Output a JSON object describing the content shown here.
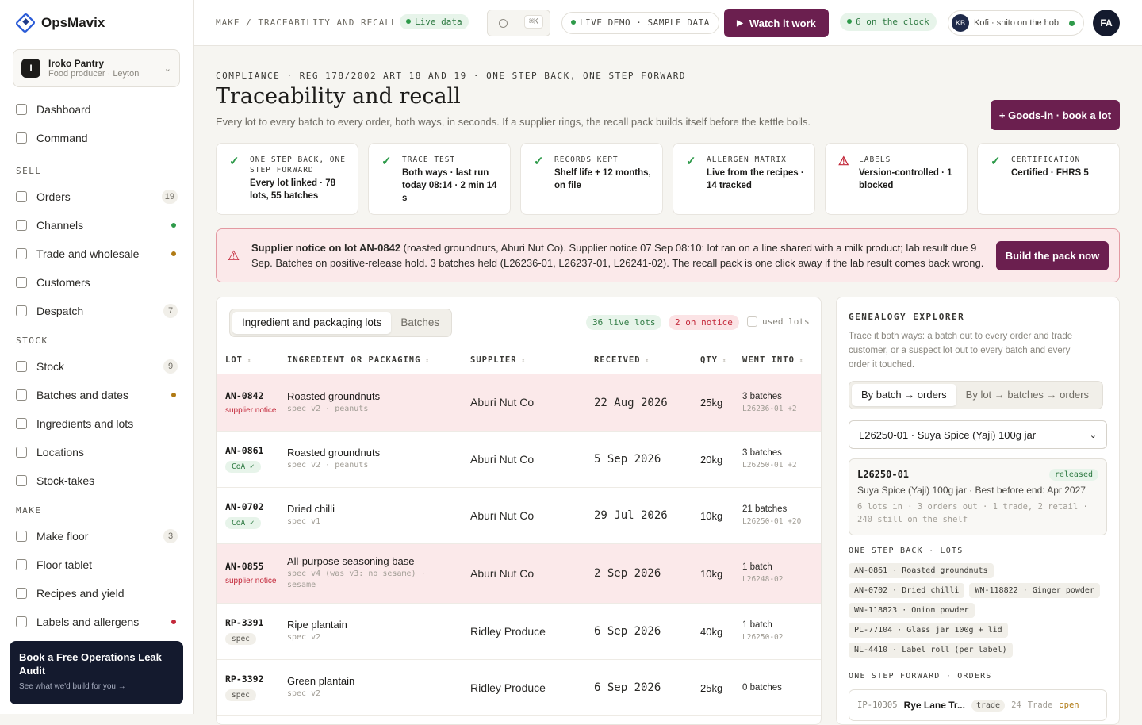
{
  "app": {
    "name": "OpsMavix"
  },
  "org": {
    "badge": "I",
    "name": "Iroko Pantry",
    "sub": "Food producer · Leyton"
  },
  "nav": {
    "top": [
      {
        "label": "Dashboard",
        "icon": "grid-icon"
      },
      {
        "label": "Command",
        "icon": "terminal-icon"
      }
    ],
    "sell_head": "SELL",
    "sell": [
      {
        "label": "Orders",
        "icon": "cart-icon",
        "badge": "19"
      },
      {
        "label": "Channels",
        "icon": "plug-icon",
        "dot": "#2e9a4a"
      },
      {
        "label": "Trade and wholesale",
        "icon": "bag-icon",
        "dot": "#b07a14"
      },
      {
        "label": "Customers",
        "icon": "users-icon"
      },
      {
        "label": "Despatch",
        "icon": "truck-icon",
        "badge": "7"
      }
    ],
    "stock_head": "STOCK",
    "stock": [
      {
        "label": "Stock",
        "icon": "box-icon",
        "badge": "9"
      },
      {
        "label": "Batches and dates",
        "icon": "barcode-icon",
        "dot": "#b07a14"
      },
      {
        "label": "Ingredients and lots",
        "icon": "list-icon"
      },
      {
        "label": "Locations",
        "icon": "building-icon"
      },
      {
        "label": "Stock-takes",
        "icon": "clipboard-icon"
      }
    ],
    "make_head": "MAKE",
    "make": [
      {
        "label": "Make floor",
        "icon": "flask-icon",
        "badge": "3"
      },
      {
        "label": "Floor tablet",
        "icon": "tablet-icon"
      },
      {
        "label": "Recipes and yield",
        "icon": "book-icon"
      },
      {
        "label": "Labels and allergens",
        "icon": "scale-icon",
        "dot": "#c3283a"
      }
    ]
  },
  "cta": {
    "title": "Book a Free Operations Leak Audit",
    "sub": "See what we'd build for you →"
  },
  "topbar": {
    "crumb": "MAKE / TRACEABILITY AND RECALL",
    "live": "Live data",
    "kbd": "⌘K",
    "demo": "LIVE DEMO · SAMPLE DATA",
    "watch": "Watch it work",
    "clock": "6 on the clock",
    "user_badge": "KB",
    "user_name": "Kofi · shito on the hob",
    "avatar": "FA"
  },
  "page": {
    "eyebrow": "COMPLIANCE · REG 178/2002 ART 18 AND 19 · ONE STEP BACK, ONE STEP FORWARD",
    "title": "Traceability and recall",
    "subtitle": "Every lot to every batch to every order, both ways, in seconds. If a supplier rings, the recall pack builds itself before the kettle boils.",
    "goods_in": "+ Goods-in · book a lot"
  },
  "checks": [
    {
      "title": "ONE STEP BACK, ONE STEP FORWARD",
      "value": "Every lot linked · 78 lots, 55 batches",
      "status": "ok"
    },
    {
      "title": "TRACE TEST",
      "value": "Both ways · last run today 08:14 · 2 min 14 s",
      "status": "ok"
    },
    {
      "title": "RECORDS KEPT",
      "value": "Shelf life + 12 months, on file",
      "status": "ok"
    },
    {
      "title": "ALLERGEN MATRIX",
      "value": "Live from the recipes · 14 tracked",
      "status": "ok"
    },
    {
      "title": "LABELS",
      "value": "Version-controlled · 1 blocked",
      "status": "warn"
    },
    {
      "title": "CERTIFICATION",
      "value": "Certified · FHRS 5",
      "status": "ok"
    }
  ],
  "alert": {
    "lead": "Supplier notice on lot AN-0842",
    "text": " (roasted groundnuts, Aburi Nut Co). Supplier notice 07 Sep 08:10: lot ran on a line shared with a milk product; lab result due 9 Sep. Batches on positive-release hold. 3 batches held (L26236-01, L26237-01, L26241-02). The recall pack is one click away if the lab result comes back wrong.",
    "button": "Build the pack now"
  },
  "lots": {
    "tabs": [
      "Ingredient and packaging lots",
      "Batches"
    ],
    "live_tag": "36 live lots",
    "notice_tag": "2 on notice",
    "used_label": "used lots",
    "columns": [
      "LOT",
      "INGREDIENT OR PACKAGING",
      "SUPPLIER",
      "RECEIVED",
      "QTY",
      "WENT INTO"
    ],
    "rows": [
      {
        "lot": "AN-0842",
        "tag": "supplier notice",
        "tag_type": "notice",
        "name": "Roasted groundnuts",
        "spec": "spec v2 · peanuts",
        "supplier": "Aburi Nut Co",
        "received": "22 Aug 2026",
        "qty": "25kg",
        "into": "3 batches",
        "into_sub": "L26236-01 +2",
        "notice": true
      },
      {
        "lot": "AN-0861",
        "tag": "CoA ✓",
        "tag_type": "coa",
        "name": "Roasted groundnuts",
        "spec": "spec v2 · peanuts",
        "supplier": "Aburi Nut Co",
        "received": "5 Sep 2026",
        "qty": "20kg",
        "into": "3 batches",
        "into_sub": "L26250-01 +2",
        "notice": false
      },
      {
        "lot": "AN-0702",
        "tag": "CoA ✓",
        "tag_type": "coa",
        "name": "Dried chilli",
        "spec": "spec v1",
        "supplier": "Aburi Nut Co",
        "received": "29 Jul 2026",
        "qty": "10kg",
        "into": "21 batches",
        "into_sub": "L26250-01 +20",
        "notice": false
      },
      {
        "lot": "AN-0855",
        "tag": "supplier notice",
        "tag_type": "notice",
        "name": "All-purpose seasoning base",
        "spec": "spec v4 (was v3: no sesame) · sesame",
        "supplier": "Aburi Nut Co",
        "received": "2 Sep 2026",
        "qty": "10kg",
        "into": "1 batch",
        "into_sub": "L26248-02",
        "notice": true
      },
      {
        "lot": "RP-3391",
        "tag": "spec",
        "tag_type": "spec",
        "name": "Ripe plantain",
        "spec": "spec v2",
        "supplier": "Ridley Produce",
        "received": "6 Sep 2026",
        "qty": "40kg",
        "into": "1 batch",
        "into_sub": "L26250-02",
        "notice": false
      },
      {
        "lot": "RP-3392",
        "tag": "spec",
        "tag_type": "spec",
        "name": "Green plantain",
        "spec": "spec v2",
        "supplier": "Ridley Produce",
        "received": "6 Sep 2026",
        "qty": "25kg",
        "into": "0 batches",
        "into_sub": "",
        "notice": false
      }
    ]
  },
  "genealogy": {
    "title": "GENEALOGY EXPLORER",
    "desc": "Trace it both ways: a batch out to every order and trade customer, or a suspect lot out to every batch and every order it touched.",
    "tabs": [
      "By batch → orders",
      "By lot → batches → orders"
    ],
    "select": "L26250-01 · Suya Spice (Yaji) 100g jar",
    "batch": {
      "id": "L26250-01",
      "status": "released",
      "name": "Suya Spice (Yaji) 100g jar · Best before end: Apr 2027",
      "summary": "6 lots in · 3 orders out · 1 trade, 2 retail · 240 still on the shelf"
    },
    "back_head": "ONE STEP BACK · LOTS",
    "back_lots": [
      "AN-0861 · Roasted groundnuts",
      "AN-0702 · Dried chilli",
      "WN-118822 · Ginger powder",
      "WN-118823 · Onion powder",
      "PL-77104 · Glass jar 100g + lid",
      "NL-4410 · Label roll (per label)"
    ],
    "forward_head": "ONE STEP FORWARD · ORDERS",
    "order": {
      "id": "IP-10305",
      "name": "Rye Lane Tr...",
      "tag": "trade",
      "qty": "24",
      "channel": "Trade",
      "status": "open"
    }
  }
}
